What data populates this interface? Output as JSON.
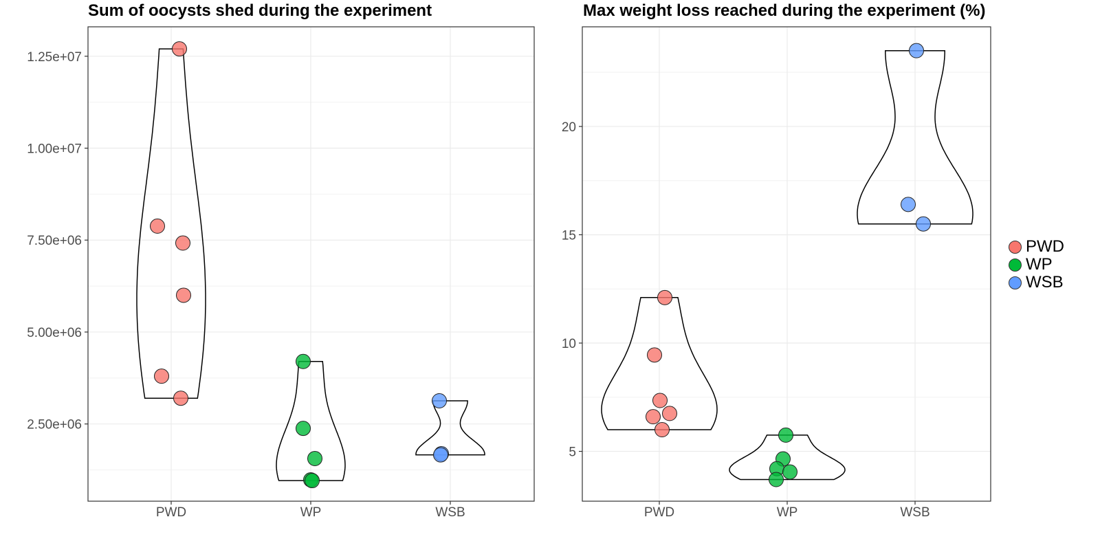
{
  "chart_data": [
    {
      "type": "violin",
      "title": "Sum of oocysts shed during the experiment",
      "xlabel": "",
      "ylabel": "",
      "categories": [
        "PWD",
        "WP",
        "WSB"
      ],
      "ylim": [
        400000,
        13300000
      ],
      "yticks": [
        2500000,
        5000000,
        7500000,
        10000000,
        12500000
      ],
      "ytick_labels": [
        "2.50e+06",
        "5.00e+06",
        "7.50e+06",
        "1.00e+07",
        "1.25e+07"
      ],
      "grid": true,
      "series": [
        {
          "category": "PWD",
          "values": [
            12700000,
            7880000,
            7420000,
            6000000,
            3800000,
            3200000
          ]
        },
        {
          "category": "WP",
          "values": [
            4200000,
            2380000,
            1560000,
            980000,
            960000
          ]
        },
        {
          "category": "WSB",
          "values": [
            3130000,
            1690000,
            1660000
          ]
        }
      ]
    },
    {
      "type": "violin",
      "title": "Max weight loss reached during the experiment (%)",
      "xlabel": "",
      "ylabel": "",
      "categories": [
        "PWD",
        "WP",
        "WSB"
      ],
      "ylim": [
        2.7,
        24.6
      ],
      "yticks": [
        5,
        10,
        15,
        20
      ],
      "ytick_labels": [
        "5",
        "10",
        "15",
        "20"
      ],
      "grid": true,
      "series": [
        {
          "category": "PWD",
          "values": [
            12.1,
            9.45,
            7.35,
            6.75,
            6.6,
            6.0
          ]
        },
        {
          "category": "WP",
          "values": [
            5.75,
            4.65,
            4.2,
            4.05,
            3.7
          ]
        },
        {
          "category": "WSB",
          "values": [
            23.5,
            16.4,
            15.5
          ]
        }
      ]
    }
  ],
  "legend": {
    "position": "right",
    "items": [
      {
        "label": "PWD",
        "color": "#F8766D"
      },
      {
        "label": "WP",
        "color": "#00BA38"
      },
      {
        "label": "WSB",
        "color": "#619CFF"
      }
    ]
  }
}
